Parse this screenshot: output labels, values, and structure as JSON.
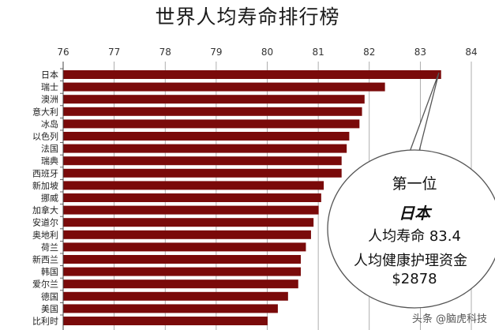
{
  "chart_data": {
    "type": "bar",
    "orientation": "horizontal",
    "title": "世界人均寿命排行榜",
    "xlim": [
      76,
      84
    ],
    "x_ticks": [
      "76",
      "77",
      "78",
      "79",
      "80",
      "81",
      "82",
      "83",
      "84"
    ],
    "grid": "vertical",
    "bar_color": "#7a0a0a",
    "categories": [
      "日本",
      "瑞士",
      "澳洲",
      "意大利",
      "冰岛",
      "以色列",
      "法国",
      "瑞典",
      "西班牙",
      "新加坡",
      "挪威",
      "加拿大",
      "安道尔",
      "奥地利",
      "荷兰",
      "新西兰",
      "韩国",
      "爱尔兰",
      "德国",
      "美国",
      "比利时"
    ],
    "values": [
      83.4,
      82.3,
      81.9,
      81.85,
      81.8,
      81.6,
      81.55,
      81.45,
      81.45,
      81.1,
      81.05,
      81.0,
      80.9,
      80.85,
      80.75,
      80.65,
      80.65,
      80.6,
      80.4,
      80.2,
      80.0
    ]
  },
  "callout": {
    "rank": "第一位",
    "country": "日本",
    "life_expectancy": "人均寿命 83.4",
    "spend_label": "人均健康护理资金",
    "spend_value": "$2878"
  },
  "watermark": "头条 @脑虎科技"
}
